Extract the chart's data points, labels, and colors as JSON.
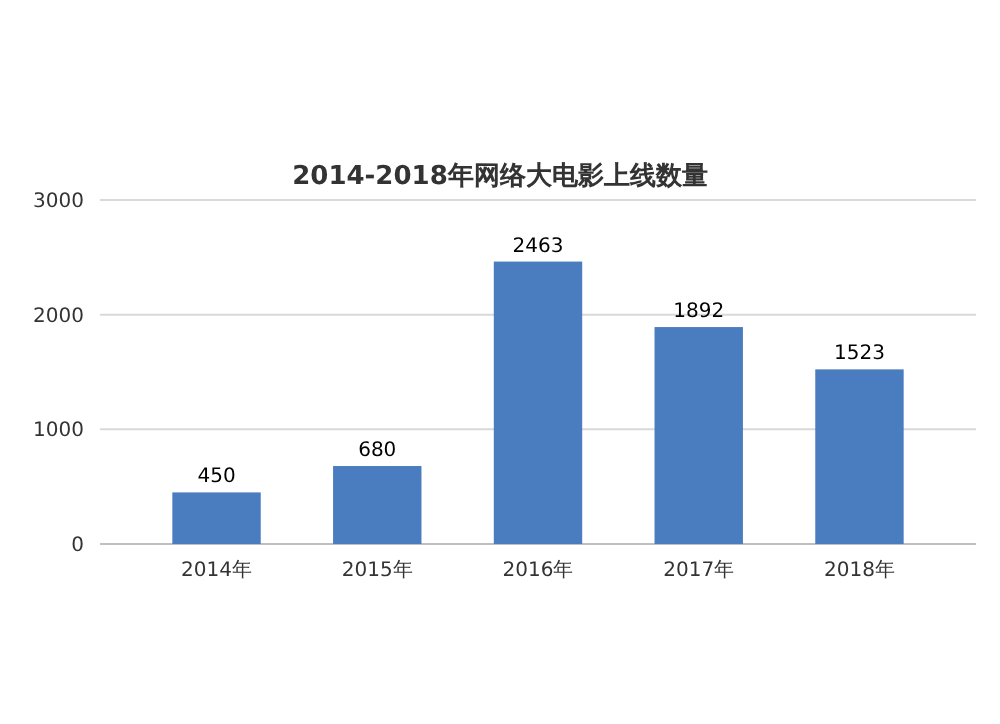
{
  "chart_data": {
    "type": "bar",
    "title": "2014-2018年网络大电影上线数量",
    "categories": [
      "2014年",
      "2015年",
      "2016年",
      "2017年",
      "2018年"
    ],
    "values": [
      450,
      680,
      2463,
      1892,
      1523
    ],
    "color": "#4a7dc0",
    "ylim": [
      0,
      3000
    ],
    "yticks": [
      0,
      1000,
      2000,
      3000
    ],
    "grid": "y",
    "data_labels": true
  }
}
